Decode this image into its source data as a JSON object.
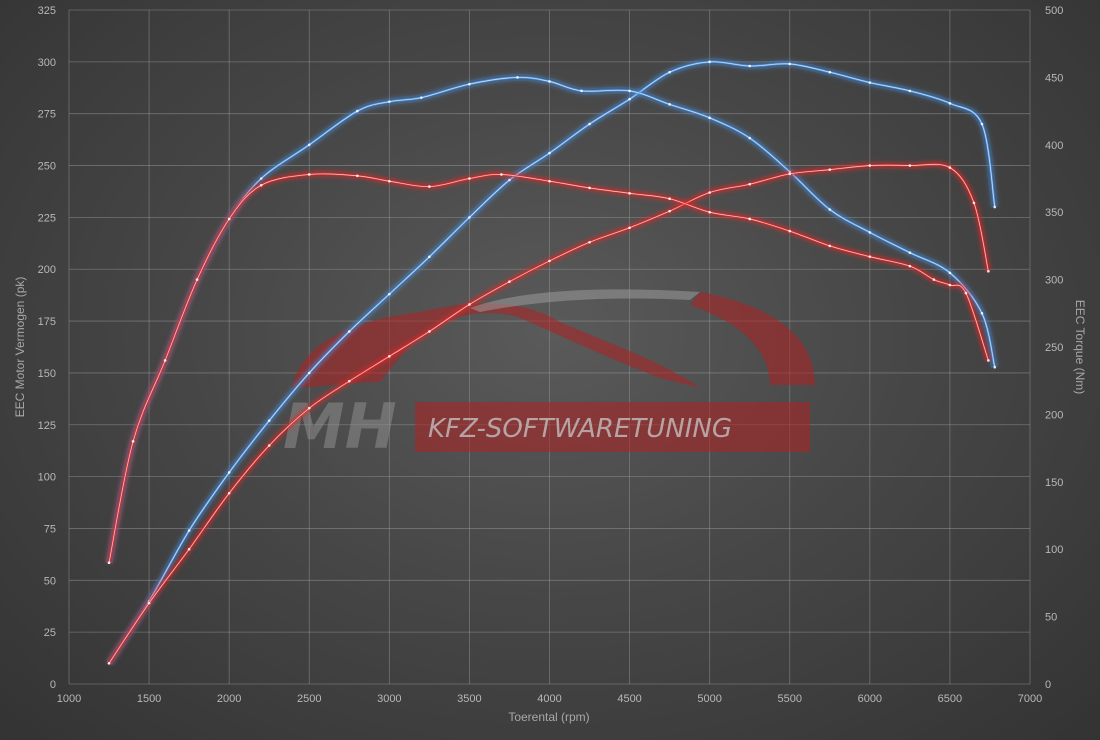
{
  "chart_data": {
    "type": "line",
    "xlabel": "Toerental (rpm)",
    "ylabel_left": "EEC Motor Vermogen (pk)",
    "ylabel_right": "EEC Torque (Nm)",
    "xlim": [
      1000,
      7000
    ],
    "ylim_left": [
      0,
      325
    ],
    "ylim_right": [
      0,
      500
    ],
    "x_ticks": [
      "1000",
      "1500",
      "2000",
      "2500",
      "3000",
      "3500",
      "4000",
      "4500",
      "5000",
      "5500",
      "6000",
      "6500",
      "7000"
    ],
    "y_left_ticks": [
      "0",
      "25",
      "50",
      "75",
      "100",
      "125",
      "150",
      "175",
      "200",
      "225",
      "250",
      "275",
      "300",
      "325"
    ],
    "y_right_ticks": [
      "0",
      "50",
      "100",
      "150",
      "200",
      "250",
      "300",
      "350",
      "400",
      "450",
      "500"
    ],
    "grid": true,
    "colors": {
      "tuned": "#4a90e0",
      "stock": "#e02a2a"
    },
    "series": [
      {
        "role": "tuned-power",
        "axis": "left",
        "color": "#4a90e0",
        "x": [
          1250,
          1500,
          1750,
          2000,
          2250,
          2500,
          2750,
          3000,
          3250,
          3500,
          3750,
          4000,
          4250,
          4500,
          4750,
          5000,
          5250,
          5500,
          5750,
          6000,
          6250,
          6500,
          6700,
          6780
        ],
        "y": [
          10,
          40,
          74,
          102,
          127,
          150,
          170,
          188,
          206,
          225,
          243,
          256,
          270,
          282,
          295,
          300,
          298,
          299,
          295,
          290,
          286,
          280,
          270,
          230
        ]
      },
      {
        "role": "tuned-torque",
        "axis": "right",
        "color": "#4a90e0",
        "x": [
          1250,
          1400,
          1600,
          1800,
          2000,
          2200,
          2500,
          2800,
          3000,
          3200,
          3500,
          3800,
          4000,
          4200,
          4500,
          4750,
          5000,
          5250,
          5500,
          5750,
          6000,
          6250,
          6500,
          6700,
          6780
        ],
        "y": [
          90,
          180,
          240,
          300,
          345,
          375,
          400,
          425,
          432,
          435,
          445,
          450,
          447,
          440,
          440,
          430,
          420,
          405,
          380,
          352,
          335,
          320,
          305,
          275,
          235
        ]
      },
      {
        "role": "stock-power",
        "axis": "left",
        "color": "#e02a2a",
        "x": [
          1250,
          1500,
          1750,
          2000,
          2250,
          2500,
          2750,
          3000,
          3250,
          3500,
          3750,
          4000,
          4250,
          4500,
          4750,
          5000,
          5250,
          5500,
          5750,
          6000,
          6250,
          6500,
          6650,
          6740
        ],
        "y": [
          10,
          39,
          65,
          92,
          115,
          133,
          146,
          158,
          170,
          183,
          194,
          204,
          213,
          220,
          228,
          237,
          241,
          246,
          248,
          250,
          250,
          249,
          232,
          199
        ]
      },
      {
        "role": "stock-torque",
        "axis": "right",
        "color": "#e02a2a",
        "x": [
          1250,
          1400,
          1600,
          1800,
          2000,
          2200,
          2500,
          2800,
          3000,
          3250,
          3500,
          3700,
          4000,
          4250,
          4500,
          4750,
          5000,
          5250,
          5500,
          5750,
          6000,
          6250,
          6400,
          6500,
          6600,
          6740
        ],
        "y": [
          90,
          180,
          240,
          300,
          345,
          370,
          378,
          377,
          373,
          369,
          375,
          378,
          373,
          368,
          364,
          360,
          350,
          345,
          336,
          325,
          317,
          310,
          300,
          296,
          290,
          240
        ]
      }
    ]
  },
  "watermark": {
    "logo_letters": "MH",
    "text": "KFZ-SOFTWARETUNING"
  }
}
